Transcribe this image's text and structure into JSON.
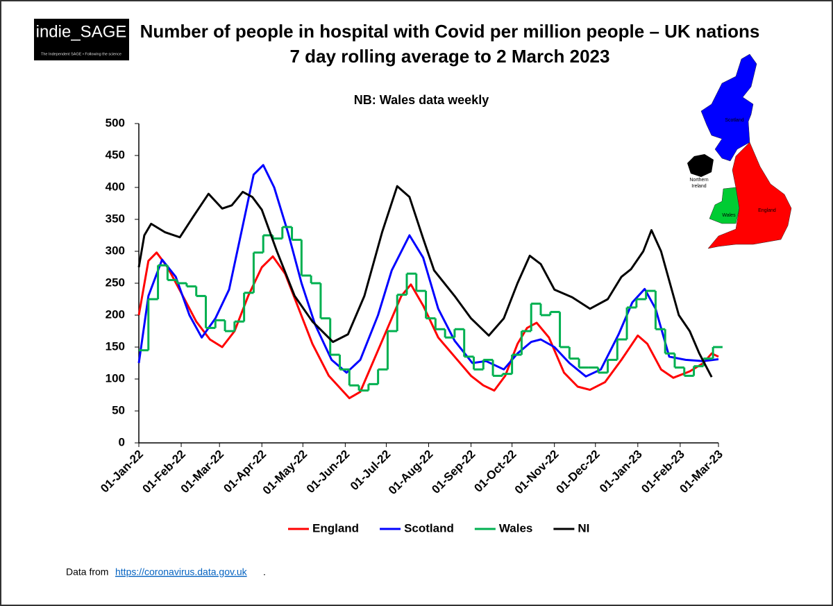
{
  "logo": {
    "text": "indie_SAGE",
    "tagline": "The Independent SAGE • Following the science"
  },
  "chart_data": {
    "type": "line",
    "title": [
      "Number of people in hospital with Covid per million people – UK nations",
      "7 day rolling average to 2 March 2023"
    ],
    "annotation": "NB: Wales data weekly",
    "xlim": [
      "2022-01-01",
      "2023-03-01"
    ],
    "xticks": [
      {
        "value": "2022-01-01",
        "label": "01-Jan-22"
      },
      {
        "value": "2022-02-01",
        "label": "01-Feb-22"
      },
      {
        "value": "2022-03-01",
        "label": "01-Mar-22"
      },
      {
        "value": "2022-04-01",
        "label": "01-Apr-22"
      },
      {
        "value": "2022-05-01",
        "label": "01-May-22"
      },
      {
        "value": "2022-06-01",
        "label": "01-Jun-22"
      },
      {
        "value": "2022-07-01",
        "label": "01-Jul-22"
      },
      {
        "value": "2022-08-01",
        "label": "01-Aug-22"
      },
      {
        "value": "2022-09-01",
        "label": "01-Sep-22"
      },
      {
        "value": "2022-10-01",
        "label": "01-Oct-22"
      },
      {
        "value": "2022-11-01",
        "label": "01-Nov-22"
      },
      {
        "value": "2022-12-01",
        "label": "01-Dec-22"
      },
      {
        "value": "2023-01-01",
        "label": "01-Jan-23"
      },
      {
        "value": "2023-02-01",
        "label": "01-Feb-23"
      },
      {
        "value": "2023-03-01",
        "label": "01-Mar-23"
      }
    ],
    "ylim": [
      0,
      500
    ],
    "yticks": [
      0,
      50,
      100,
      150,
      200,
      250,
      300,
      350,
      400,
      450,
      500
    ],
    "grid": false,
    "legend": "bottom",
    "series": [
      {
        "name": "England",
        "color": "#ff0000",
        "x": [
          "2022-01-01",
          "2022-01-08",
          "2022-01-14",
          "2022-01-22",
          "2022-02-01",
          "2022-02-12",
          "2022-02-22",
          "2022-03-03",
          "2022-03-12",
          "2022-03-22",
          "2022-04-01",
          "2022-04-09",
          "2022-04-18",
          "2022-04-28",
          "2022-05-08",
          "2022-05-20",
          "2022-06-04",
          "2022-06-12",
          "2022-06-22",
          "2022-07-03",
          "2022-07-12",
          "2022-07-19",
          "2022-07-28",
          "2022-08-08",
          "2022-08-20",
          "2022-09-01",
          "2022-09-10",
          "2022-09-18",
          "2022-09-26",
          "2022-10-05",
          "2022-10-12",
          "2022-10-19",
          "2022-10-28",
          "2022-11-08",
          "2022-11-18",
          "2022-11-27",
          "2022-12-08",
          "2022-12-20",
          "2023-01-01",
          "2023-01-08",
          "2023-01-18",
          "2023-01-27",
          "2023-02-08",
          "2023-02-18",
          "2023-02-24",
          "2023-03-01"
        ],
        "values": [
          200,
          285,
          298,
          275,
          235,
          190,
          162,
          150,
          175,
          230,
          275,
          292,
          265,
          210,
          155,
          105,
          70,
          80,
          130,
          185,
          230,
          248,
          215,
          165,
          135,
          105,
          90,
          82,
          105,
          155,
          180,
          188,
          165,
          110,
          88,
          83,
          95,
          130,
          168,
          155,
          115,
          102,
          112,
          125,
          140,
          135
        ]
      },
      {
        "name": "Scotland",
        "color": "#0000ff",
        "x": [
          "2022-01-01",
          "2022-01-08",
          "2022-01-18",
          "2022-01-28",
          "2022-02-07",
          "2022-02-16",
          "2022-02-26",
          "2022-03-08",
          "2022-03-18",
          "2022-03-26",
          "2022-04-02",
          "2022-04-10",
          "2022-04-20",
          "2022-04-30",
          "2022-05-10",
          "2022-05-22",
          "2022-06-02",
          "2022-06-12",
          "2022-06-25",
          "2022-07-05",
          "2022-07-18",
          "2022-07-28",
          "2022-08-08",
          "2022-08-20",
          "2022-09-02",
          "2022-09-12",
          "2022-09-25",
          "2022-10-05",
          "2022-10-15",
          "2022-10-22",
          "2022-11-01",
          "2022-11-12",
          "2022-11-24",
          "2022-12-05",
          "2022-12-18",
          "2022-12-28",
          "2023-01-06",
          "2023-01-14",
          "2023-01-24",
          "2023-02-05",
          "2023-02-18",
          "2023-03-01"
        ],
        "values": [
          125,
          230,
          287,
          260,
          200,
          165,
          195,
          240,
          340,
          420,
          435,
          400,
          330,
          250,
          185,
          130,
          110,
          130,
          200,
          270,
          325,
          290,
          210,
          160,
          125,
          128,
          115,
          140,
          158,
          162,
          150,
          125,
          104,
          115,
          170,
          220,
          241,
          210,
          135,
          130,
          128,
          131
        ]
      },
      {
        "name": "Wales",
        "color": "#00b050",
        "line_shape": "step",
        "x": [
          "2022-01-01",
          "2022-01-08",
          "2022-01-15",
          "2022-01-22",
          "2022-01-29",
          "2022-02-05",
          "2022-02-12",
          "2022-02-19",
          "2022-02-26",
          "2022-03-05",
          "2022-03-12",
          "2022-03-19",
          "2022-03-26",
          "2022-04-02",
          "2022-04-09",
          "2022-04-16",
          "2022-04-23",
          "2022-04-30",
          "2022-05-07",
          "2022-05-14",
          "2022-05-21",
          "2022-05-28",
          "2022-06-04",
          "2022-06-11",
          "2022-06-18",
          "2022-06-25",
          "2022-07-02",
          "2022-07-09",
          "2022-07-16",
          "2022-07-23",
          "2022-07-30",
          "2022-08-06",
          "2022-08-13",
          "2022-08-20",
          "2022-08-27",
          "2022-09-03",
          "2022-09-10",
          "2022-09-17",
          "2022-09-24",
          "2022-10-01",
          "2022-10-08",
          "2022-10-15",
          "2022-10-22",
          "2022-10-29",
          "2022-11-05",
          "2022-11-12",
          "2022-11-19",
          "2022-11-26",
          "2022-12-03",
          "2022-12-10",
          "2022-12-17",
          "2022-12-24",
          "2022-12-31",
          "2023-01-07",
          "2023-01-14",
          "2023-01-21",
          "2023-01-28",
          "2023-02-04",
          "2023-02-11",
          "2023-02-18",
          "2023-02-25"
        ],
        "values": [
          145,
          225,
          278,
          255,
          250,
          245,
          230,
          180,
          192,
          175,
          190,
          235,
          298,
          325,
          320,
          338,
          318,
          262,
          250,
          195,
          138,
          115,
          90,
          82,
          92,
          115,
          175,
          232,
          265,
          238,
          195,
          178,
          165,
          178,
          135,
          115,
          130,
          105,
          108,
          138,
          175,
          218,
          200,
          205,
          150,
          132,
          118,
          118,
          110,
          130,
          162,
          212,
          225,
          238,
          178,
          140,
          118,
          105,
          120,
          132,
          150
        ]
      },
      {
        "name": "NI",
        "color": "#000000",
        "x": [
          "2022-01-01",
          "2022-01-05",
          "2022-01-10",
          "2022-01-20",
          "2022-01-31",
          "2022-02-10",
          "2022-02-21",
          "2022-03-03",
          "2022-03-10",
          "2022-03-18",
          "2022-03-25",
          "2022-04-01",
          "2022-04-12",
          "2022-04-25",
          "2022-05-08",
          "2022-05-23",
          "2022-06-03",
          "2022-06-15",
          "2022-06-28",
          "2022-07-09",
          "2022-07-18",
          "2022-07-28",
          "2022-08-05",
          "2022-08-20",
          "2022-09-01",
          "2022-09-14",
          "2022-09-25",
          "2022-10-05",
          "2022-10-14",
          "2022-10-22",
          "2022-11-01",
          "2022-11-14",
          "2022-11-27",
          "2022-12-10",
          "2022-12-20",
          "2022-12-27",
          "2023-01-05",
          "2023-01-11",
          "2023-01-18",
          "2023-01-31",
          "2023-02-08",
          "2023-02-15",
          "2023-02-24"
        ],
        "values": [
          275,
          325,
          343,
          330,
          322,
          355,
          390,
          367,
          372,
          393,
          385,
          365,
          300,
          230,
          190,
          158,
          170,
          230,
          330,
          402,
          385,
          320,
          270,
          230,
          195,
          168,
          195,
          250,
          293,
          280,
          240,
          228,
          210,
          225,
          260,
          272,
          300,
          333,
          300,
          200,
          175,
          140,
          103
        ]
      }
    ]
  },
  "map_labels": {
    "scotland": "Scotland",
    "northern_ireland": [
      "Northern",
      "Ireland"
    ],
    "wales": "Wales",
    "england": "England"
  },
  "footer": {
    "prefix": "Data from",
    "link": "https://coronavirus.data.gov.uk",
    "suffix": "."
  }
}
